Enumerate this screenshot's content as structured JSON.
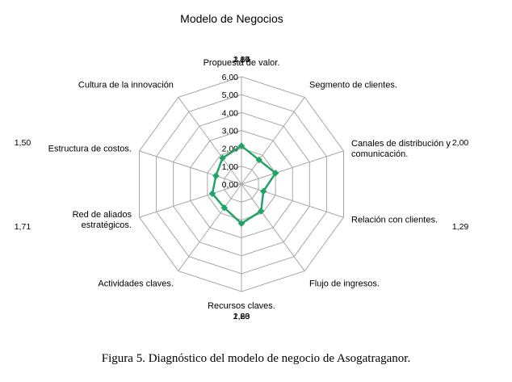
{
  "chart_data": {
    "type": "radar",
    "title": "Modelo de Negocios",
    "categories": [
      "Propuesta de valor.",
      "Segmento de clientes.",
      "Canales de distribución y comunicación.",
      "Relación con clientes.",
      "Flujo de ingresos.",
      "Recursos claves.",
      "Actividades claves.",
      "Red de aliados estratégicos.",
      "Estructura de costos.",
      "Cultura de la innovación"
    ],
    "category_lines": [
      [
        "Propuesta de valor."
      ],
      [
        "Segmento de clientes."
      ],
      [
        "Canales de distribución y",
        "comunicación."
      ],
      [
        "Relación con clientes."
      ],
      [
        "Flujo de ingresos."
      ],
      [
        "Recursos claves."
      ],
      [
        "Actividades claves."
      ],
      [
        "Red de aliados",
        "estratégicos."
      ],
      [
        "Estructura de costos."
      ],
      [
        "Cultura de la innovación"
      ]
    ],
    "values": [
      2.14,
      1.67,
      2.0,
      1.29,
      1.86,
      2.2,
      1.63,
      1.71,
      1.5,
      1.8
    ],
    "value_labels": [
      "2,14",
      "1,67",
      "2,00",
      "1,29",
      "1,86",
      "2,20",
      "1,63",
      "1,71",
      "1,50",
      "1,80"
    ],
    "rlim": [
      0,
      6
    ],
    "ticks": [
      "0,00",
      "1,00",
      "2,00",
      "3,00",
      "4,00",
      "5,00",
      "6,00"
    ],
    "series_color": "#21a366",
    "grid_color": "#a6a6a6",
    "grid": true,
    "legend": false
  },
  "caption": "Figura 5. Diagnóstico del modelo de negocio de Asogatraganor."
}
